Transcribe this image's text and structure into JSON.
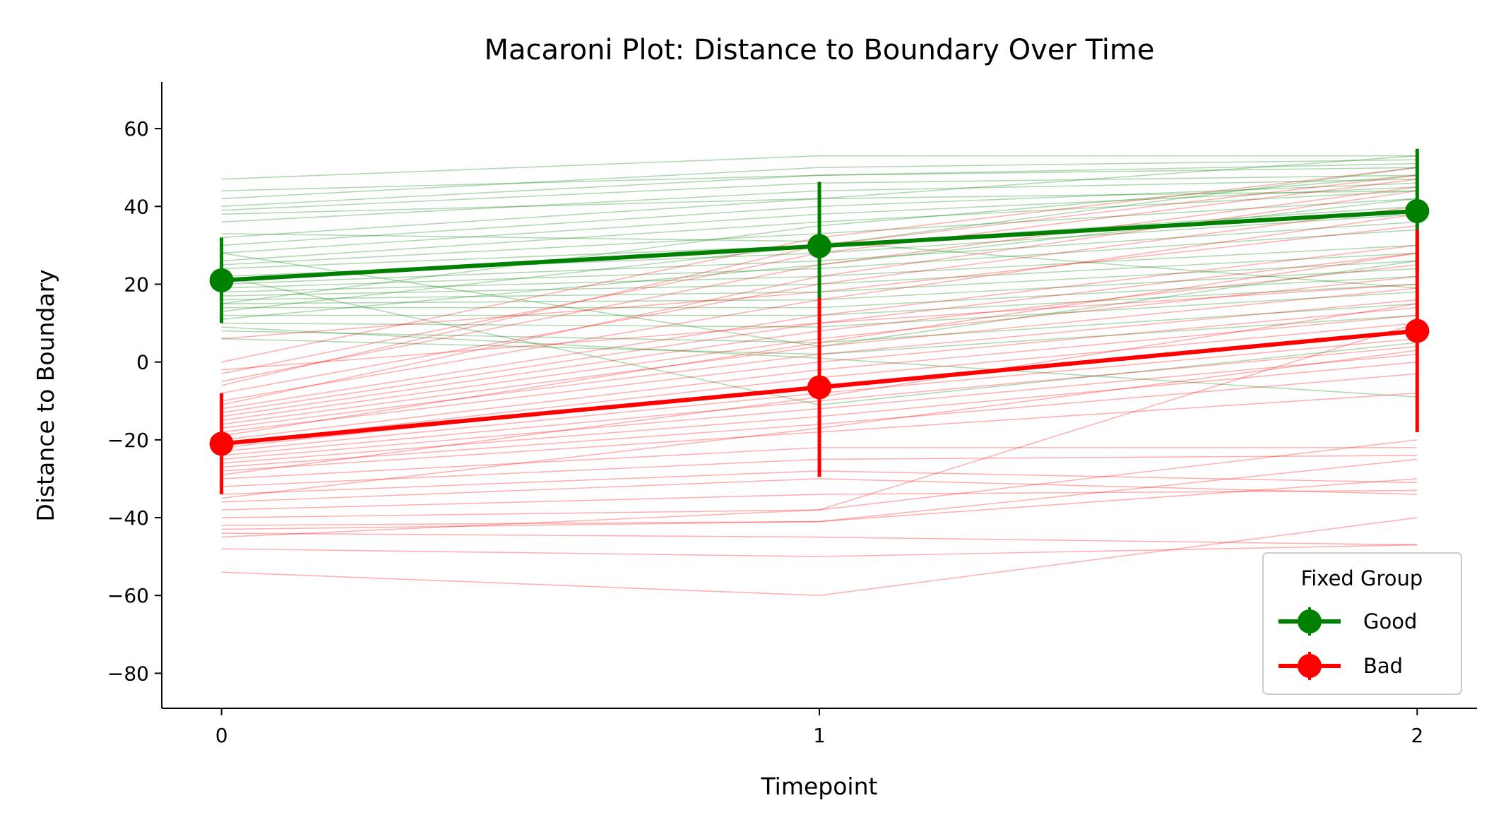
{
  "chart_data": {
    "type": "line",
    "title": "Macaroni Plot: Distance to Boundary Over Time",
    "xlabel": "Timepoint",
    "ylabel": "Distance to Boundary",
    "x": [
      0,
      1,
      2
    ],
    "x_ticks": [
      "0",
      "1",
      "2"
    ],
    "y_ticks": [
      60,
      40,
      20,
      0,
      -20,
      -40,
      -60,
      -80
    ],
    "xlim": [
      -0.1,
      2.1
    ],
    "ylim": [
      -89,
      72
    ],
    "grid": false,
    "legend": {
      "title": "Fixed Group",
      "placement": "lower-right"
    },
    "colors": {
      "Good": "#008000",
      "Bad": "#ff0000"
    },
    "series": [
      {
        "name": "Good",
        "values": [
          21,
          29.8,
          38.8
        ],
        "error": [
          11,
          16.5,
          16
        ]
      },
      {
        "name": "Bad",
        "values": [
          -21,
          -6.5,
          8
        ],
        "error": [
          13,
          23,
          26
        ]
      }
    ],
    "individual_lines": {
      "Good": [
        [
          47,
          53,
          53
        ],
        [
          42,
          50,
          52
        ],
        [
          40,
          48,
          50
        ],
        [
          39,
          46,
          48
        ],
        [
          36,
          44,
          47
        ],
        [
          32,
          42,
          53
        ],
        [
          30,
          40,
          46
        ],
        [
          28,
          38,
          45
        ],
        [
          26,
          36,
          44
        ],
        [
          25,
          33,
          42
        ],
        [
          24,
          30,
          40
        ],
        [
          22,
          28,
          38
        ],
        [
          20,
          26,
          36
        ],
        [
          19,
          24,
          34
        ],
        [
          18,
          22,
          30
        ],
        [
          17,
          20,
          28
        ],
        [
          16,
          18,
          26
        ],
        [
          15,
          16,
          24
        ],
        [
          14,
          14,
          22
        ],
        [
          12,
          12,
          20
        ],
        [
          10,
          9,
          18
        ],
        [
          8,
          5,
          15
        ],
        [
          6,
          2,
          12
        ],
        [
          9,
          1,
          -9
        ],
        [
          22,
          -11,
          5
        ],
        [
          15,
          35,
          48
        ],
        [
          11,
          25,
          42
        ],
        [
          28,
          4,
          26
        ],
        [
          38,
          42,
          44
        ],
        [
          44,
          48,
          51
        ],
        [
          13,
          30,
          50
        ],
        [
          33,
          31,
          19
        ]
      ],
      "Bad": [
        [
          0,
          32,
          50
        ],
        [
          -3,
          28,
          47
        ],
        [
          -5,
          25,
          45
        ],
        [
          -8,
          20,
          40
        ],
        [
          -10,
          16,
          38
        ],
        [
          -12,
          12,
          30
        ],
        [
          -13,
          10,
          28
        ],
        [
          -14,
          8,
          25
        ],
        [
          -15,
          6,
          22
        ],
        [
          -16,
          4,
          19
        ],
        [
          -17,
          2,
          16
        ],
        [
          -18,
          0,
          14
        ],
        [
          -20,
          -2,
          12
        ],
        [
          -21,
          -4,
          10
        ],
        [
          -22,
          -6,
          8
        ],
        [
          -23,
          -8,
          6
        ],
        [
          -24,
          -10,
          4
        ],
        [
          -25,
          -12,
          2
        ],
        [
          -26,
          -14,
          0
        ],
        [
          -27,
          -16,
          -3
        ],
        [
          -28,
          -18,
          -8
        ],
        [
          -30,
          -22,
          -22
        ],
        [
          -32,
          -25,
          -24
        ],
        [
          -34,
          -28,
          -31
        ],
        [
          -36,
          -30,
          -34
        ],
        [
          -38,
          -34,
          -33
        ],
        [
          -40,
          -38,
          10
        ],
        [
          -42,
          -41,
          -25
        ],
        [
          -44,
          -45,
          -47
        ],
        [
          -45,
          -38,
          -20
        ],
        [
          -48,
          -50,
          -47
        ],
        [
          -54,
          -60,
          -40
        ],
        [
          -2,
          10,
          20
        ],
        [
          6,
          18,
          35
        ],
        [
          -6,
          30,
          48
        ],
        [
          -11,
          22,
          44
        ],
        [
          -19,
          5,
          28
        ],
        [
          -29,
          -9,
          15
        ],
        [
          -35,
          -17,
          3
        ],
        [
          -43,
          -41,
          -30
        ]
      ]
    }
  }
}
